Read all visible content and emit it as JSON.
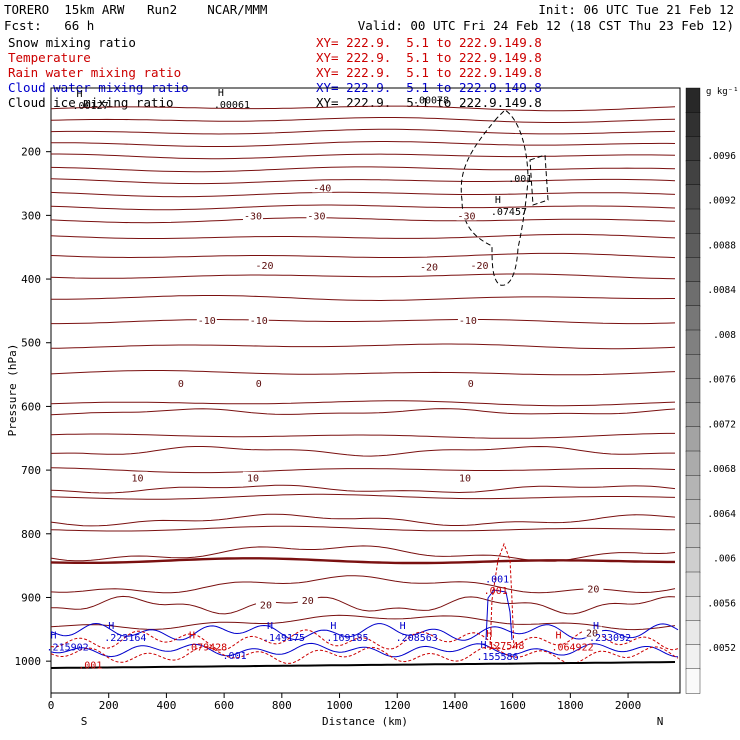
{
  "header": {
    "line1_left": "TORERO  15km ARW   Run2    NCAR/MMM",
    "init": "Init: 06 UTC Tue 21 Feb 12",
    "fcst": "Fcst:   66 h",
    "valid": "Valid: 00 UTC Fri 24 Feb 12 (18 CST Thu 23 Feb 12)"
  },
  "fields": [
    {
      "name": "Snow mixing ratio",
      "xy": "",
      "color": "#000000"
    },
    {
      "name": "Temperature",
      "xy": "XY= 222.9.  5.1 to 222.9.149.8",
      "color": "#cc0000"
    },
    {
      "name": "Rain water mixing ratio",
      "xy": "XY= 222.9.  5.1 to 222.9.149.8",
      "color": "#cc0000"
    },
    {
      "name": "Cloud water mixing ratio",
      "xy": "XY= 222.9.  5.1 to 222.9.149.8",
      "color": "#0000cc"
    },
    {
      "name": "Cloud ice mixing ratio",
      "xy": "XY= 222.9.  5.1 to 222.9.149.8",
      "color": "#000000"
    }
  ],
  "snow_xy": "XY= 222.9.  5.1 to 222.9.149.8",
  "chart_data": {
    "type": "contour cross-section",
    "xlabel": "Distance (km)",
    "ylabel": "Pressure (hPa)",
    "xlim": [
      0,
      2180
    ],
    "ylim": [
      1050,
      100
    ],
    "x_ticks": [
      0,
      200,
      400,
      600,
      800,
      1000,
      1200,
      1400,
      1600,
      1800,
      2000
    ],
    "y_ticks": [
      200,
      300,
      400,
      500,
      600,
      700,
      800,
      900,
      1000
    ],
    "end_labels": {
      "left": "S",
      "right": "N"
    },
    "temperature_labels": [
      {
        "text": "-40",
        "x": 940,
        "p": 256
      },
      {
        "text": "-30",
        "x": 700,
        "p": 300
      },
      {
        "text": "-30",
        "x": 920,
        "p": 300
      },
      {
        "text": "-30",
        "x": 1440,
        "p": 300
      },
      {
        "text": "-20",
        "x": 740,
        "p": 378
      },
      {
        "text": "-20",
        "x": 1310,
        "p": 380
      },
      {
        "text": "-20",
        "x": 1485,
        "p": 378
      },
      {
        "text": "-10",
        "x": 540,
        "p": 464
      },
      {
        "text": "-10",
        "x": 720,
        "p": 464
      },
      {
        "text": "-10",
        "x": 1445,
        "p": 464
      },
      {
        "text": "0",
        "x": 450,
        "p": 563
      },
      {
        "text": "0",
        "x": 720,
        "p": 563
      },
      {
        "text": "0",
        "x": 1455,
        "p": 563
      },
      {
        "text": "10",
        "x": 300,
        "p": 712
      },
      {
        "text": "10",
        "x": 700,
        "p": 712
      },
      {
        "text": "10",
        "x": 1435,
        "p": 712
      },
      {
        "text": "20",
        "x": 745,
        "p": 911
      },
      {
        "text": "20",
        "x": 890,
        "p": 904
      },
      {
        "text": "20",
        "x": 1880,
        "p": 886
      },
      {
        "text": "20",
        "x": 1875,
        "p": 955
      }
    ],
    "maxima_labels": [
      {
        "marker": "H",
        "text": ".00127",
        "x": 130,
        "p": 127,
        "color": "#000000"
      },
      {
        "marker": "H",
        "text": ".00061",
        "x": 620,
        "p": 125,
        "color": "#000000"
      },
      {
        "marker": "",
        "text": ".00078",
        "x": 1310,
        "p": 118,
        "color": "#000000"
      },
      {
        "marker": "",
        "text": ".001",
        "x": 1640,
        "p": 241,
        "color": "#000000"
      },
      {
        "marker": "H",
        "text": ".07457",
        "x": 1580,
        "p": 293,
        "color": "#000000"
      },
      {
        "marker": "",
        "text": ".001",
        "x": 1560,
        "p": 870,
        "color": "#0000cc"
      },
      {
        "marker": "",
        "text": ".001",
        "x": 1555,
        "p": 888,
        "color": "#cc0000"
      },
      {
        "marker": "",
        "text": ".001",
        "x": 650,
        "p": 990,
        "color": "#0000cc"
      },
      {
        "marker": "",
        "text": ".001",
        "x": 150,
        "p": 1005,
        "color": "#cc0000"
      },
      {
        "marker": "H",
        "text": ".223164",
        "x": 240,
        "p": 962,
        "color": "#0000cc"
      },
      {
        "marker": "H",
        "text": ".079428",
        "x": 520,
        "p": 977,
        "color": "#cc0000"
      },
      {
        "marker": "H",
        "text": ".149175",
        "x": 790,
        "p": 962,
        "color": "#0000cc"
      },
      {
        "marker": "H",
        "text": ".169185",
        "x": 1010,
        "p": 962,
        "color": "#0000cc"
      },
      {
        "marker": "H",
        "text": ".208563",
        "x": 1250,
        "p": 962,
        "color": "#0000cc"
      },
      {
        "marker": "H",
        "text": ".127548",
        "x": 1550,
        "p": 975,
        "color": "#cc0000"
      },
      {
        "marker": "H",
        "text": ".064922",
        "x": 1790,
        "p": 977,
        "color": "#cc0000"
      },
      {
        "marker": "H",
        "text": ".233092",
        "x": 1920,
        "p": 962,
        "color": "#0000cc"
      },
      {
        "marker": "H",
        "text": ".155586",
        "x": 1530,
        "p": 992,
        "color": "#0000cc"
      },
      {
        "marker": "H",
        "text": ".215902",
        "x": 40,
        "p": 977,
        "color": "#0000cc"
      }
    ]
  },
  "colorbar": {
    "unit": "g kg⁻¹",
    "labels": [
      ".0096",
      ".0092",
      ".0088",
      ".0084",
      ".008",
      ".0076",
      ".0072",
      ".0068",
      ".0064",
      ".006",
      ".0056",
      ".0052"
    ]
  }
}
